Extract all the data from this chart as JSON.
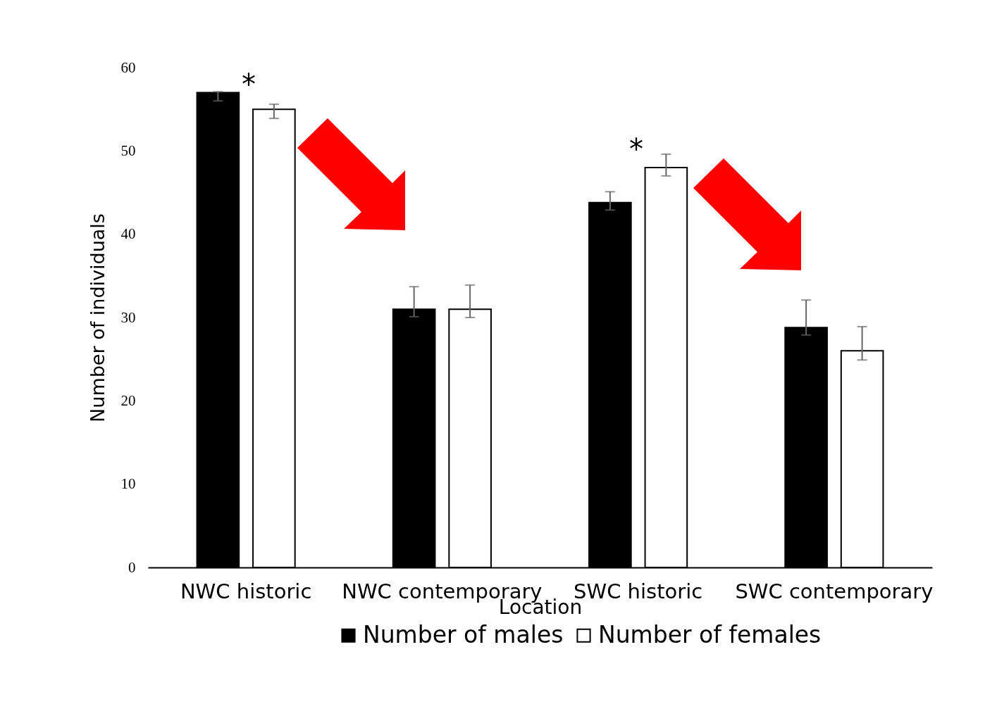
{
  "chart_data": {
    "type": "bar",
    "xlabel": "Location",
    "ylabel": "Number of individuals",
    "categories": [
      "NWC historic",
      "NWC contemporary",
      "SWC historic",
      "SWC contemporary"
    ],
    "series": [
      {
        "name": "Number of males",
        "color": "#000000",
        "values": [
          57,
          31,
          43.8,
          28.8
        ],
        "errors": [
          [
            56.0,
            57.1
          ],
          [
            30.1,
            33.7
          ],
          [
            42.9,
            45.1
          ],
          [
            27.9,
            32.1
          ]
        ]
      },
      {
        "name": "Number of females",
        "color": "#ffffff",
        "values": [
          55,
          31,
          48,
          26
        ],
        "errors": [
          [
            53.9,
            55.6
          ],
          [
            30.0,
            33.9
          ],
          [
            47.0,
            49.6
          ],
          [
            24.9,
            28.9
          ]
        ]
      }
    ],
    "ylim": [
      0,
      60
    ],
    "yticks": [
      0,
      10,
      20,
      30,
      40,
      50,
      60
    ],
    "grid": false,
    "legend": "bottom",
    "annotations": [
      "*",
      "*"
    ]
  }
}
